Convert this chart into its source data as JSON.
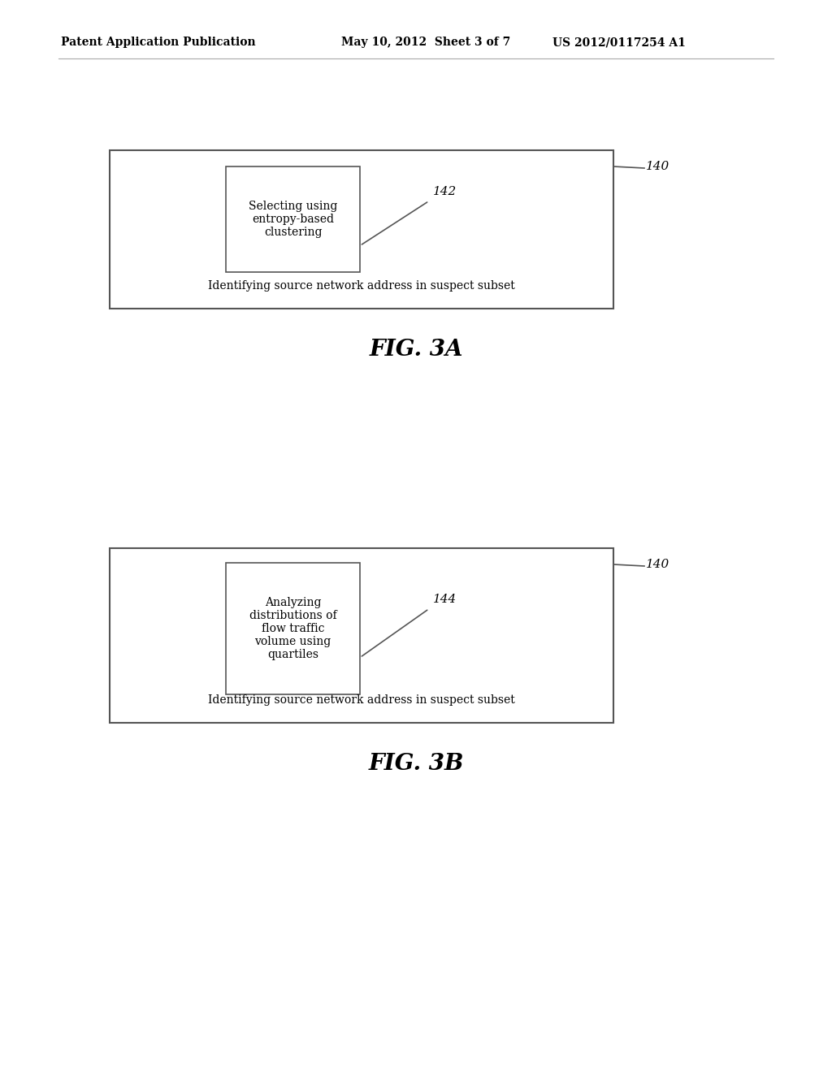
{
  "background_color": "#ffffff",
  "header_left": "Patent Application Publication",
  "header_center": "May 10, 2012  Sheet 3 of 7",
  "header_right": "US 2012/0117254 A1",
  "fig3a_label": "FIG. 3A",
  "fig3b_label": "FIG. 3B",
  "outer_box1_label": "140",
  "outer_box2_label": "140",
  "inner_box1_label": "142",
  "inner_box2_label": "144",
  "inner_box1_text": "Selecting using\nentropy-based\nclustering",
  "inner_box2_text": "Analyzing\ndistributions of\nflow traffic\nvolume using\nquartiles",
  "outer_bottom_text": "Identifying source network address in suspect subset",
  "line_color": "#555555",
  "text_color": "#000000"
}
